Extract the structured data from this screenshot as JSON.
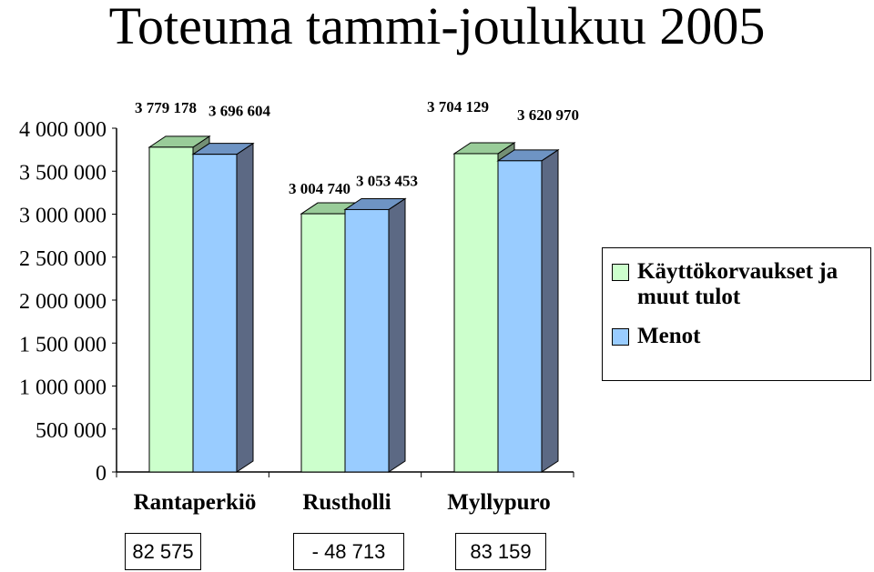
{
  "chart_data": {
    "type": "bar",
    "title": "Toteuma tammi-joulukuu 2005",
    "categories": [
      "Rantaperkiö",
      "Rustholli",
      "Myllypuro"
    ],
    "series": [
      {
        "name": "Käyttökorvaukset ja muut tulot",
        "values": [
          3779178,
          3004740,
          3704129
        ],
        "labels": [
          "3 779 178",
          "3 004 740",
          "3 704 129"
        ],
        "color": "#ccffcc"
      },
      {
        "name": "Menot",
        "values": [
          3696604,
          3053453,
          3620970
        ],
        "labels": [
          "3 696 604",
          "3 053 453",
          "3 620 970"
        ],
        "color": "#99ccff"
      }
    ],
    "ylim": [
      0,
      4000000
    ],
    "yticks": [
      "0",
      "500 000",
      "1 000 000",
      "1 500 000",
      "2 000 000",
      "2 500 000",
      "3 000 000",
      "3 500 000",
      "4 000 000"
    ],
    "grid": false,
    "legend_position": "right",
    "xlabel": "",
    "ylabel": ""
  },
  "differences": [
    "82 575",
    "- 48 713",
    "83 159"
  ]
}
